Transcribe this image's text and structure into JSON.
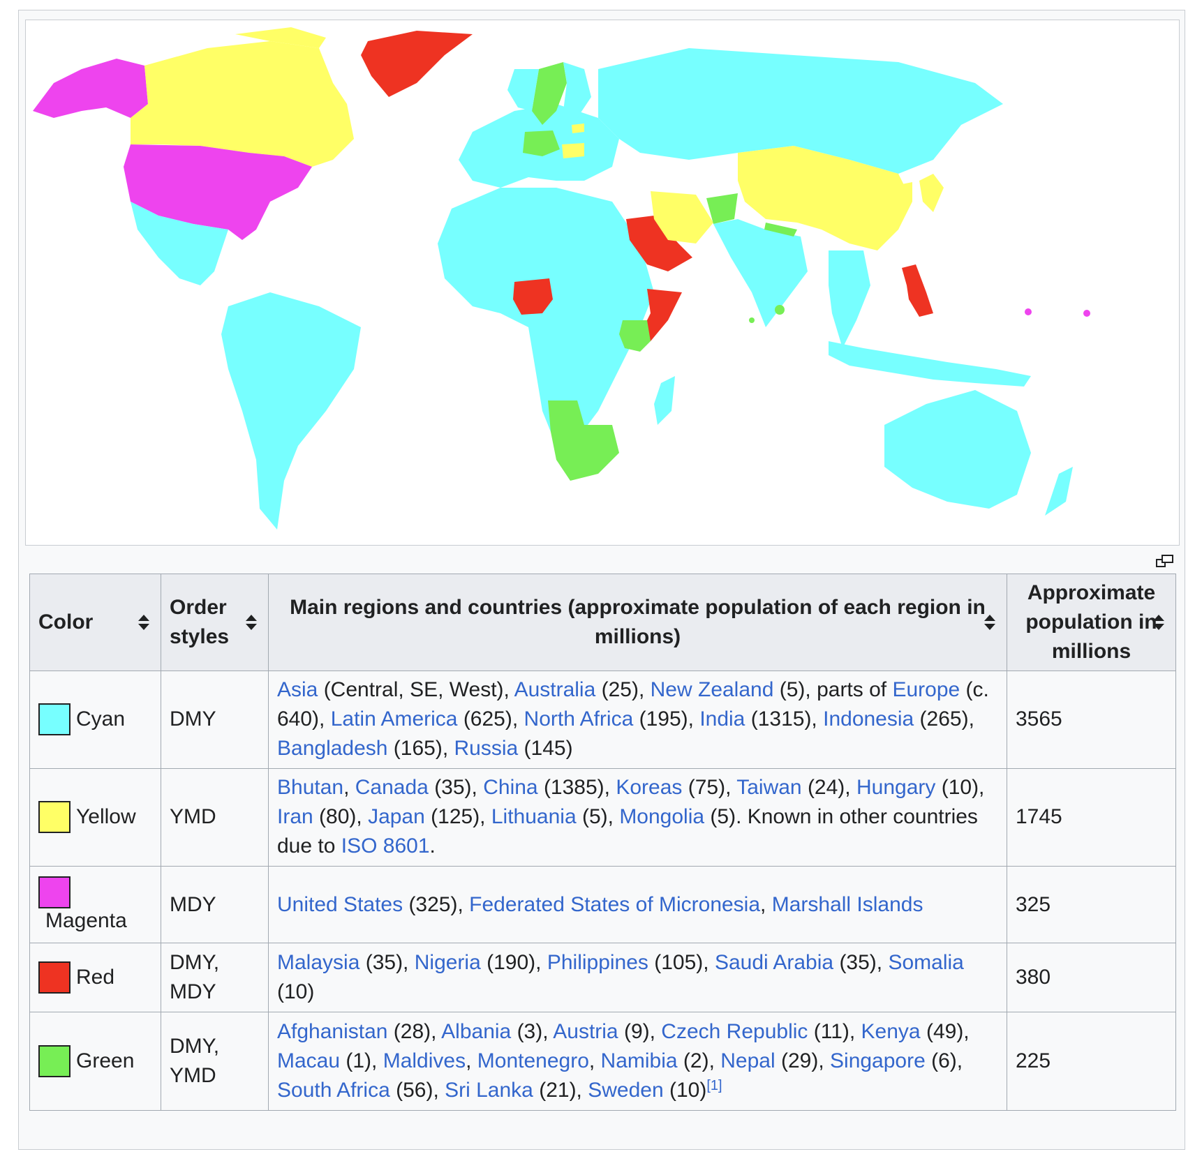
{
  "legend": {
    "columns": [
      {
        "label": "Color"
      },
      {
        "label": "Order styles"
      },
      {
        "label": "Main regions and countries (approximate population of each region in millions)"
      },
      {
        "label": "Approximate population in millions"
      }
    ],
    "rows": [
      {
        "color_name": "Cyan",
        "hex": "#77FFFF",
        "order": "DMY",
        "population": "3565"
      },
      {
        "color_name": "Yellow",
        "hex": "#FFFF66",
        "order": "YMD",
        "population": "1745"
      },
      {
        "color_name": "Magenta",
        "hex": "#EE44EE",
        "order": "MDY",
        "population": "325"
      },
      {
        "color_name": "Red",
        "hex": "#EE3322",
        "order_line1": "DMY,",
        "order_line2": "MDY",
        "population": "380"
      },
      {
        "color_name": "Green",
        "hex": "#77EE55",
        "order_line1": "DMY,",
        "order_line2": "YMD",
        "population": "225"
      }
    ],
    "cyan_regions": {
      "asia": "Asia",
      "asia_note": " (Central, SE, West), ",
      "australia": "Australia",
      "australia_note": " (25), ",
      "new_zealand": "New Zealand",
      "new_zealand_note": " (5), parts of ",
      "europe": "Europe",
      "europe_note": " (c. 640), ",
      "latin_america": "Latin America",
      "latin_america_note": " (625), ",
      "north_africa": "North Africa",
      "north_africa_note": " (195), ",
      "india": "India",
      "india_note": " (1315), ",
      "indonesia": "Indonesia",
      "indonesia_note": " (265), ",
      "bangladesh": "Bangladesh",
      "bangladesh_note": " (165), ",
      "russia": "Russia",
      "russia_note": " (145)"
    },
    "yellow_regions": {
      "bhutan": "Bhutan",
      "bhutan_note": ", ",
      "canada": "Canada",
      "canada_note": " (35), ",
      "china": "China",
      "china_note": " (1385), ",
      "koreas": "Koreas",
      "koreas_note": " (75), ",
      "taiwan": "Taiwan",
      "taiwan_note": " (24), ",
      "hungary": "Hungary",
      "hungary_note": " (10), ",
      "iran": "Iran",
      "iran_note": " (80), ",
      "japan": "Japan",
      "japan_note": " (125), ",
      "lithuania": "Lithuania",
      "lithuania_note": " (5), ",
      "mongolia": "Mongolia",
      "mongolia_note": " (5). Known in other countries due to ",
      "iso": "ISO 8601",
      "iso_note": "."
    },
    "magenta_regions": {
      "united_states": "United States",
      "united_states_note": " (325), ",
      "micronesia": "Federated States of Micronesia",
      "micronesia_note": ", ",
      "marshall": "Marshall Islands"
    },
    "red_regions": {
      "malaysia": "Malaysia",
      "malaysia_note": " (35), ",
      "nigeria": "Nigeria",
      "nigeria_note": " (190), ",
      "philippines": "Philippines",
      "philippines_note": " (105), ",
      "saudi": "Saudi Arabia",
      "saudi_note": " (35), ",
      "somalia": "Somalia",
      "somalia_note": " (10)"
    },
    "green_regions": {
      "afghanistan": "Afghanistan",
      "afghanistan_note": " (28), ",
      "albania": "Albania",
      "albania_note": " (3), ",
      "austria": "Austria",
      "austria_note": " (9), ",
      "czech": "Czech Republic",
      "czech_note": " (11), ",
      "kenya": "Kenya",
      "kenya_note": " (49), ",
      "macau": "Macau",
      "macau_note": " (1), ",
      "maldives": "Maldives",
      "maldives_note": ", ",
      "montenegro": "Montenegro",
      "montenegro_note": ", ",
      "namibia": "Namibia",
      "namibia_note": " (2), ",
      "nepal": "Nepal",
      "nepal_note": " (29), ",
      "singapore": "Singapore",
      "singapore_note": " (6), ",
      "south_africa": "South Africa",
      "south_africa_note": " (56), ",
      "sri_lanka": "Sri Lanka",
      "sri_lanka_note": " (21), ",
      "sweden": "Sweden",
      "sweden_note": " (10)",
      "ref": "[1]"
    }
  }
}
